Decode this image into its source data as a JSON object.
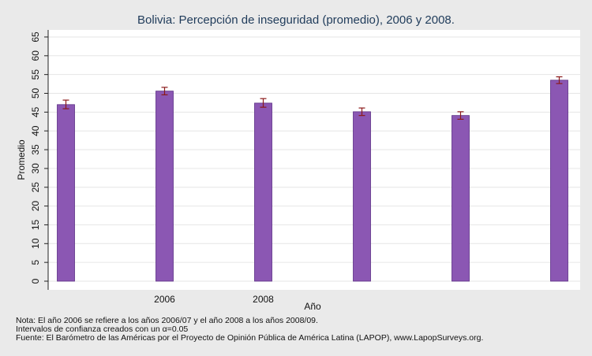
{
  "chart_data": {
    "type": "bar",
    "title": "Bolivia: Percepción de inseguridad (promedio), 2006 y 2008.",
    "ylabel": "Promedio",
    "xlabel": "Año",
    "ylim": [
      0,
      67
    ],
    "yticks": [
      0,
      5,
      10,
      15,
      20,
      25,
      30,
      35,
      40,
      45,
      50,
      55,
      60,
      65
    ],
    "grid": true,
    "bar_color": "#8b57b3",
    "error_color": "#8b1a1a",
    "categories": [
      "",
      "2006",
      "2008",
      "",
      "",
      ""
    ],
    "values": [
      47.0,
      50.6,
      47.4,
      45.1,
      44.1,
      53.5
    ],
    "ci_low": [
      45.9,
      49.6,
      46.3,
      44.1,
      43.1,
      52.6
    ],
    "ci_high": [
      48.2,
      51.6,
      48.6,
      46.1,
      45.1,
      54.4
    ]
  },
  "notes": {
    "line1": "Nota: El año 2006 se refiere a los años 2006/07 y el año 2008 a los años 2008/09.",
    "line2": "Intervalos de confianza creados con un α=0.05",
    "line3": "Fuente: El Barómetro de las Américas por el Proyecto de Opinión Pública de América Latina (LAPOP), www.LapopSurveys.org."
  }
}
